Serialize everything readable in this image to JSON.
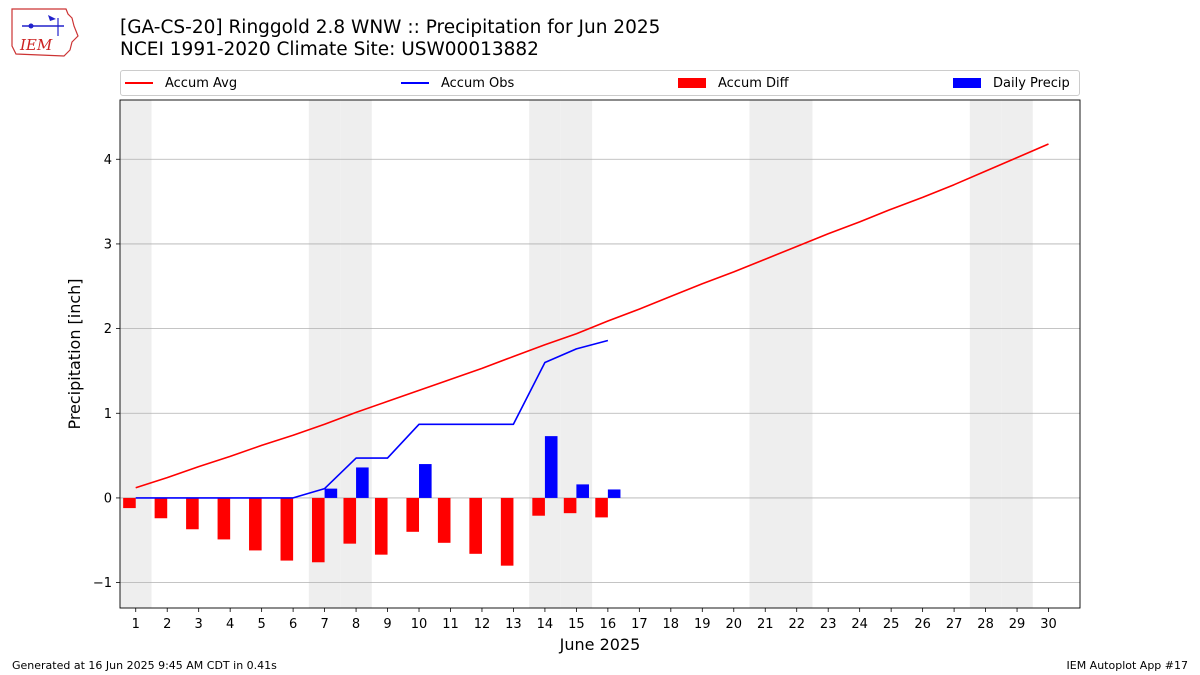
{
  "header": {
    "title_line1": "[GA-CS-20] Ringgold 2.8 WNW :: Precipitation for Jun 2025",
    "title_line2": "NCEI 1991-2020 Climate Site: USW00013882",
    "logo_text": "IEM"
  },
  "footer": {
    "generated": "Generated at 16 Jun 2025 9:45 AM CDT in 0.41s",
    "app": "IEM Autoplot App #17"
  },
  "colors": {
    "accum_avg": "#ff0000",
    "accum_obs": "#0000ff",
    "accum_diff": "#ff0000",
    "daily_precip": "#0000ff",
    "weekend_shade": "#eeeeee",
    "grid": "#b0b0b0"
  },
  "chart_data": {
    "type": "line",
    "title": "[GA-CS-20] Ringgold 2.8 WNW :: Precipitation for Jun 2025",
    "subtitle": "NCEI 1991-2020 Climate Site: USW00013882",
    "xlabel": "June 2025",
    "ylabel": "Precipitation [inch]",
    "xlim": [
      0.5,
      31.0
    ],
    "ylim": [
      -1.3,
      4.7
    ],
    "x_ticks": [
      1,
      2,
      3,
      4,
      5,
      6,
      7,
      8,
      9,
      10,
      11,
      12,
      13,
      14,
      15,
      16,
      17,
      18,
      19,
      20,
      21,
      22,
      23,
      24,
      25,
      26,
      27,
      28,
      29,
      30
    ],
    "y_ticks": [
      -1,
      0,
      1,
      2,
      3,
      4
    ],
    "y_tick_labels": [
      "−1",
      "0",
      "1",
      "2",
      "3",
      "4"
    ],
    "grid": "horizontal",
    "legend_position": "top",
    "weekend_days": [
      1,
      7,
      8,
      14,
      15,
      21,
      22,
      28,
      29
    ],
    "series": [
      {
        "name": "Accum Avg",
        "kind": "line",
        "x": [
          1,
          2,
          3,
          4,
          5,
          6,
          7,
          8,
          9,
          10,
          11,
          12,
          13,
          14,
          15,
          16,
          17,
          18,
          19,
          20,
          21,
          22,
          23,
          24,
          25,
          26,
          27,
          28,
          29,
          30
        ],
        "values": [
          0.12,
          0.24,
          0.37,
          0.49,
          0.62,
          0.74,
          0.87,
          1.01,
          1.14,
          1.27,
          1.4,
          1.53,
          1.67,
          1.81,
          1.94,
          2.09,
          2.23,
          2.38,
          2.53,
          2.67,
          2.82,
          2.97,
          3.12,
          3.26,
          3.41,
          3.55,
          3.7,
          3.86,
          4.02,
          4.18
        ]
      },
      {
        "name": "Accum Obs",
        "kind": "line",
        "x": [
          1,
          2,
          3,
          4,
          5,
          6,
          7,
          8,
          9,
          10,
          11,
          12,
          13,
          14,
          15,
          16
        ],
        "values": [
          0.0,
          0.0,
          0.0,
          0.0,
          0.0,
          0.0,
          0.11,
          0.47,
          0.47,
          0.87,
          0.87,
          0.87,
          0.87,
          1.6,
          1.76,
          1.86
        ]
      },
      {
        "name": "Accum Diff",
        "kind": "bar",
        "x": [
          1,
          2,
          3,
          4,
          5,
          6,
          7,
          8,
          9,
          10,
          11,
          12,
          13,
          14,
          15,
          16
        ],
        "values": [
          -0.12,
          -0.24,
          -0.37,
          -0.49,
          -0.62,
          -0.74,
          -0.76,
          -0.54,
          -0.67,
          -0.4,
          -0.53,
          -0.66,
          -0.8,
          -0.21,
          -0.18,
          -0.23
        ]
      },
      {
        "name": "Daily Precip",
        "kind": "bar",
        "x": [
          7,
          8,
          10,
          14,
          15,
          16
        ],
        "values": [
          0.11,
          0.36,
          0.4,
          0.73,
          0.16,
          0.1
        ]
      }
    ]
  }
}
